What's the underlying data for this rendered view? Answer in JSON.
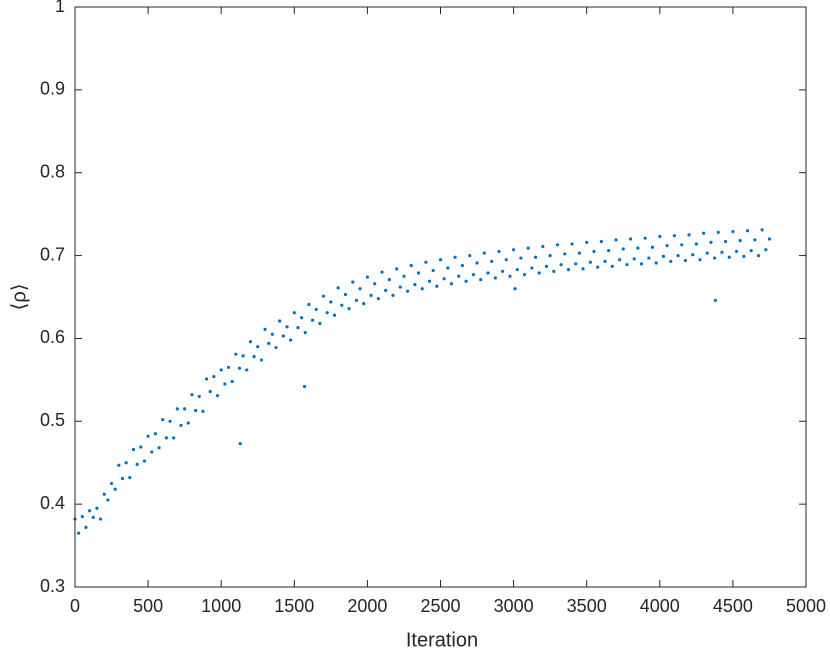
{
  "chart_data": {
    "type": "scatter",
    "xlabel": "Iteration",
    "ylabel": "⟨ρ⟩",
    "xlim": [
      0,
      5000
    ],
    "ylim": [
      0.3,
      1
    ],
    "xticks": [
      0,
      500,
      1000,
      1500,
      2000,
      2500,
      3000,
      3500,
      4000,
      4500,
      5000
    ],
    "yticks": [
      0.3,
      0.4,
      0.5,
      0.6,
      0.7,
      0.8,
      0.9,
      1
    ],
    "color": "#0072BD",
    "box": true,
    "x": [
      0,
      25,
      50,
      75,
      100,
      125,
      150,
      175,
      200,
      225,
      250,
      275,
      300,
      325,
      350,
      375,
      400,
      425,
      450,
      475,
      500,
      525,
      550,
      575,
      600,
      625,
      650,
      675,
      700,
      725,
      750,
      775,
      800,
      825,
      850,
      875,
      900,
      925,
      950,
      975,
      1000,
      1025,
      1050,
      1075,
      1100,
      1125,
      1150,
      1175,
      1200,
      1225,
      1250,
      1275,
      1300,
      1325,
      1350,
      1375,
      1400,
      1425,
      1450,
      1475,
      1500,
      1525,
      1550,
      1575,
      1600,
      1625,
      1650,
      1675,
      1700,
      1725,
      1750,
      1775,
      1800,
      1825,
      1850,
      1875,
      1900,
      1925,
      1950,
      1975,
      2000,
      2025,
      2050,
      2075,
      2100,
      2125,
      2150,
      2175,
      2200,
      2225,
      2250,
      2275,
      2300,
      2325,
      2350,
      2375,
      2400,
      2425,
      2450,
      2475,
      2500,
      2525,
      2550,
      2575,
      2600,
      2625,
      2650,
      2675,
      2700,
      2725,
      2750,
      2775,
      2800,
      2825,
      2850,
      2875,
      2900,
      2925,
      2950,
      2975,
      3000,
      3025,
      3050,
      3075,
      3100,
      3125,
      3150,
      3175,
      3200,
      3225,
      3250,
      3275,
      3300,
      3325,
      3350,
      3375,
      3400,
      3425,
      3450,
      3475,
      3500,
      3525,
      3550,
      3575,
      3600,
      3625,
      3650,
      3675,
      3700,
      3725,
      3750,
      3775,
      3800,
      3825,
      3850,
      3875,
      3900,
      3925,
      3950,
      3975,
      4000,
      4025,
      4050,
      4075,
      4100,
      4125,
      4150,
      4175,
      4200,
      4225,
      4250,
      4275,
      4300,
      4325,
      4350,
      4375,
      4400,
      4425,
      4450,
      4475,
      4500,
      4525,
      4550,
      4575,
      4600,
      4625,
      4650,
      4675,
      4700,
      4725,
      4750,
      1570,
      1130,
      4380,
      3010
    ],
    "values": [
      0.382,
      0.365,
      0.385,
      0.372,
      0.392,
      0.384,
      0.395,
      0.382,
      0.412,
      0.405,
      0.425,
      0.418,
      0.447,
      0.431,
      0.45,
      0.432,
      0.466,
      0.448,
      0.469,
      0.452,
      0.482,
      0.463,
      0.485,
      0.468,
      0.502,
      0.48,
      0.5,
      0.48,
      0.515,
      0.495,
      0.515,
      0.498,
      0.532,
      0.513,
      0.53,
      0.512,
      0.551,
      0.536,
      0.554,
      0.531,
      0.562,
      0.545,
      0.565,
      0.548,
      0.581,
      0.564,
      0.579,
      0.562,
      0.596,
      0.578,
      0.59,
      0.574,
      0.611,
      0.594,
      0.605,
      0.589,
      0.621,
      0.603,
      0.614,
      0.598,
      0.631,
      0.613,
      0.625,
      0.607,
      0.641,
      0.622,
      0.635,
      0.618,
      0.651,
      0.631,
      0.644,
      0.628,
      0.661,
      0.64,
      0.653,
      0.636,
      0.668,
      0.646,
      0.66,
      0.642,
      0.674,
      0.652,
      0.666,
      0.648,
      0.68,
      0.658,
      0.671,
      0.652,
      0.684,
      0.662,
      0.675,
      0.657,
      0.688,
      0.665,
      0.679,
      0.66,
      0.692,
      0.669,
      0.682,
      0.663,
      0.695,
      0.672,
      0.685,
      0.666,
      0.698,
      0.675,
      0.688,
      0.669,
      0.7,
      0.677,
      0.691,
      0.671,
      0.703,
      0.679,
      0.693,
      0.673,
      0.705,
      0.681,
      0.695,
      0.675,
      0.707,
      0.683,
      0.697,
      0.677,
      0.709,
      0.685,
      0.698,
      0.679,
      0.711,
      0.687,
      0.7,
      0.681,
      0.713,
      0.689,
      0.702,
      0.683,
      0.714,
      0.69,
      0.703,
      0.684,
      0.716,
      0.692,
      0.705,
      0.686,
      0.717,
      0.693,
      0.706,
      0.687,
      0.719,
      0.695,
      0.708,
      0.689,
      0.72,
      0.696,
      0.709,
      0.69,
      0.721,
      0.697,
      0.71,
      0.691,
      0.723,
      0.699,
      0.712,
      0.693,
      0.724,
      0.7,
      0.713,
      0.694,
      0.725,
      0.701,
      0.714,
      0.695,
      0.727,
      0.703,
      0.716,
      0.697,
      0.728,
      0.704,
      0.717,
      0.698,
      0.729,
      0.705,
      0.718,
      0.699,
      0.73,
      0.706,
      0.719,
      0.7,
      0.731,
      0.707,
      0.72,
      0.542,
      0.473,
      0.646,
      0.66
    ]
  }
}
